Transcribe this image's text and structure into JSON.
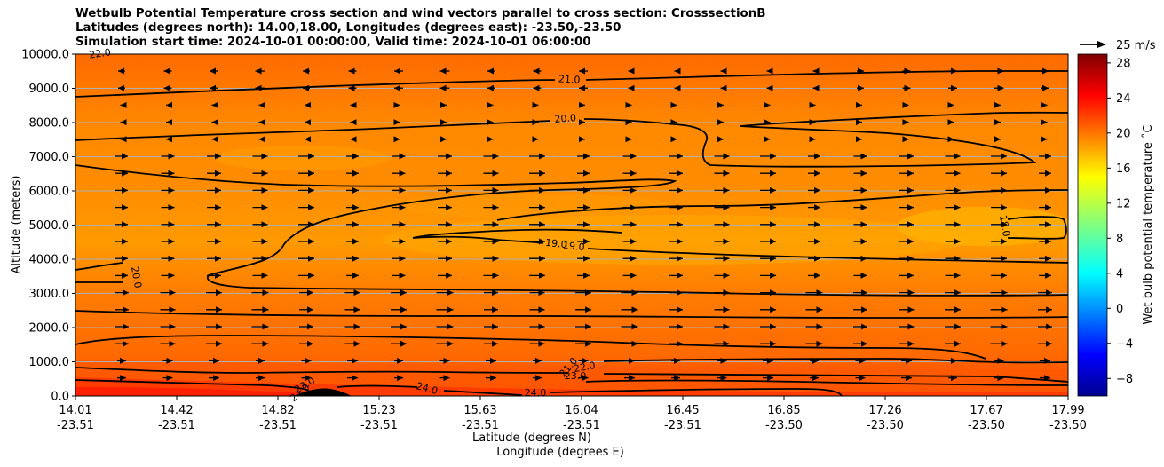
{
  "chart_data": {
    "type": "heatmap",
    "title_lines": [
      "Wetbulb Potential Temperature cross section and wind vectors parallel to cross section: CrosssectionB",
      "Latitudes (degrees north): 14.00,18.00, Longitudes (degrees east): -23.50,-23.50",
      "Simulation start time: 2024-10-01 00:00:00, Valid time: 2024-10-01 06:00:00"
    ],
    "xlabel_lat": "Latitude (degrees N)",
    "xlabel_lon": "Longitude (degrees E)",
    "ylabel": "Altitude (meters)",
    "x_ticks": [
      {
        "lat": "14.01",
        "lon": "-23.51"
      },
      {
        "lat": "14.42",
        "lon": "-23.51"
      },
      {
        "lat": "14.82",
        "lon": "-23.51"
      },
      {
        "lat": "15.23",
        "lon": "-23.51"
      },
      {
        "lat": "15.63",
        "lon": "-23.51"
      },
      {
        "lat": "16.04",
        "lon": "-23.51"
      },
      {
        "lat": "16.45",
        "lon": "-23.51"
      },
      {
        "lat": "16.85",
        "lon": "-23.50"
      },
      {
        "lat": "17.26",
        "lon": "-23.50"
      },
      {
        "lat": "17.67",
        "lon": "-23.50"
      },
      {
        "lat": "17.99",
        "lon": "-23.50"
      }
    ],
    "y_ticks": [
      "0.0",
      "1000.0",
      "2000.0",
      "3000.0",
      "4000.0",
      "5000.0",
      "6000.0",
      "7000.0",
      "8000.0",
      "9000.0",
      "10000.0"
    ],
    "ylim": [
      0,
      10000
    ],
    "grid": "horizontal",
    "colorbar": {
      "label": "Wet bulb potential temperature ˚C",
      "ticks": [
        "28",
        "24",
        "20",
        "16",
        "12",
        "8",
        "4",
        "0",
        "−4",
        "−8"
      ],
      "range": [
        -10,
        29
      ],
      "colormap": "jet"
    },
    "quiver_key": {
      "label": "25 m/s"
    },
    "contour_levels": [
      18.0,
      19.0,
      20.0,
      21.0,
      22.0,
      23.0,
      24.0
    ],
    "contour_labels": [
      {
        "text": "22.0"
      },
      {
        "text": "21.0"
      },
      {
        "text": "20.0"
      },
      {
        "text": "20.0"
      },
      {
        "text": "19.0"
      },
      {
        "text": "19.0"
      },
      {
        "text": "18.0"
      },
      {
        "text": "21.0"
      },
      {
        "text": "22.0"
      },
      {
        "text": "23.0"
      },
      {
        "text": "24.0"
      },
      {
        "text": "24.0"
      },
      {
        "text": "23.0"
      },
      {
        "text": "24.0"
      }
    ],
    "field_colors": {
      "warm_red": "#ff2a00",
      "orange_red": "#ff5a00",
      "orange": "#ff7a00",
      "amber": "#ff9a00",
      "yellow_orange": "#ffb000"
    }
  }
}
